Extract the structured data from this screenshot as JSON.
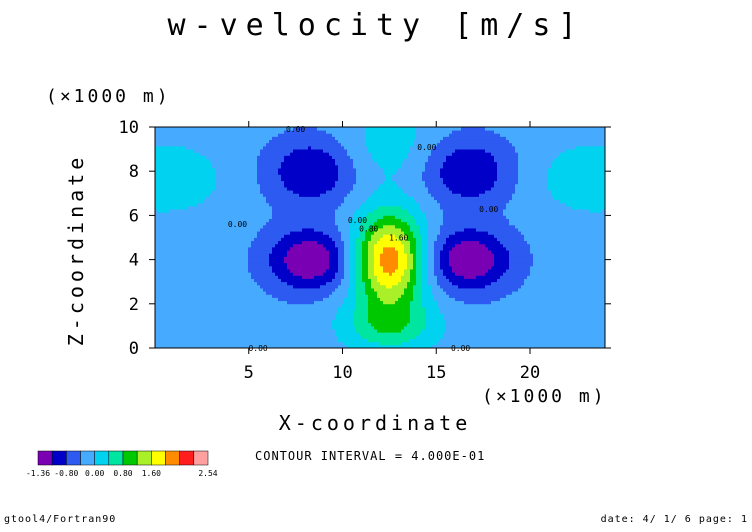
{
  "chart_data": {
    "type": "heatmap",
    "title": "w-velocity [m/s]",
    "xlabel": "X-coordinate",
    "ylabel": "Z-coordinate",
    "x_unit": "(×1000 m)",
    "y_unit": "(×1000 m)",
    "xlim": [
      0,
      24
    ],
    "ylim": [
      0,
      10
    ],
    "x_ticks": [
      5,
      10,
      15,
      20
    ],
    "y_ticks": [
      0,
      2,
      4,
      6,
      8,
      10
    ],
    "grid": false,
    "contour_interval_text": "CONTOUR INTERVAL = 4.000E-01",
    "contour_labels": [
      {
        "text": "0.00",
        "x": 7.5,
        "z": 9.9
      },
      {
        "text": "0.00",
        "x": 14.5,
        "z": 9.1
      },
      {
        "text": "0.00",
        "x": 4.4,
        "z": 5.6
      },
      {
        "text": "0.00",
        "x": 17.8,
        "z": 6.3
      },
      {
        "text": "0.00",
        "x": 10.8,
        "z": 5.8
      },
      {
        "text": "0.80",
        "x": 11.4,
        "z": 5.4
      },
      {
        "text": "1.60",
        "x": 13.0,
        "z": 5.0
      },
      {
        "text": "0.00",
        "x": 5.5,
        "z": 0.0
      },
      {
        "text": "0.00",
        "x": 16.3,
        "z": 0.0
      }
    ],
    "levels": [
      -1.36,
      -1.2,
      -0.8,
      -0.4,
      0.0,
      0.4,
      0.8,
      1.2,
      1.6,
      2.0,
      2.4,
      2.54
    ],
    "colorbar_colors": [
      "#7a00b4",
      "#0000c8",
      "#2d5af0",
      "#46aaff",
      "#00d2f0",
      "#00e6a0",
      "#00c800",
      "#aaf028",
      "#ffff00",
      "#ff8c00",
      "#ff1e1e",
      "#ffa0a0"
    ],
    "colorbar_labels": [
      "-1.36",
      "-0.80",
      "0.00",
      "0.80",
      "1.60",
      "2.54"
    ],
    "field_description_values": {
      "max": 2.54,
      "min": -1.36,
      "updraft_center_x": 12.5,
      "updraft_center_z": 4.0,
      "downdraft_centers_x": [
        8.3,
        16.7
      ],
      "downdraft_centers_z": [
        4.0,
        4.0
      ],
      "upper_negative_centers_x": [
        8.3,
        16.7
      ],
      "upper_negative_centers_z": [
        8.0,
        8.0
      ]
    }
  },
  "footer": {
    "left": "gtool4/Fortran90",
    "right": "date: 4/ 1/ 6 page: 1"
  }
}
